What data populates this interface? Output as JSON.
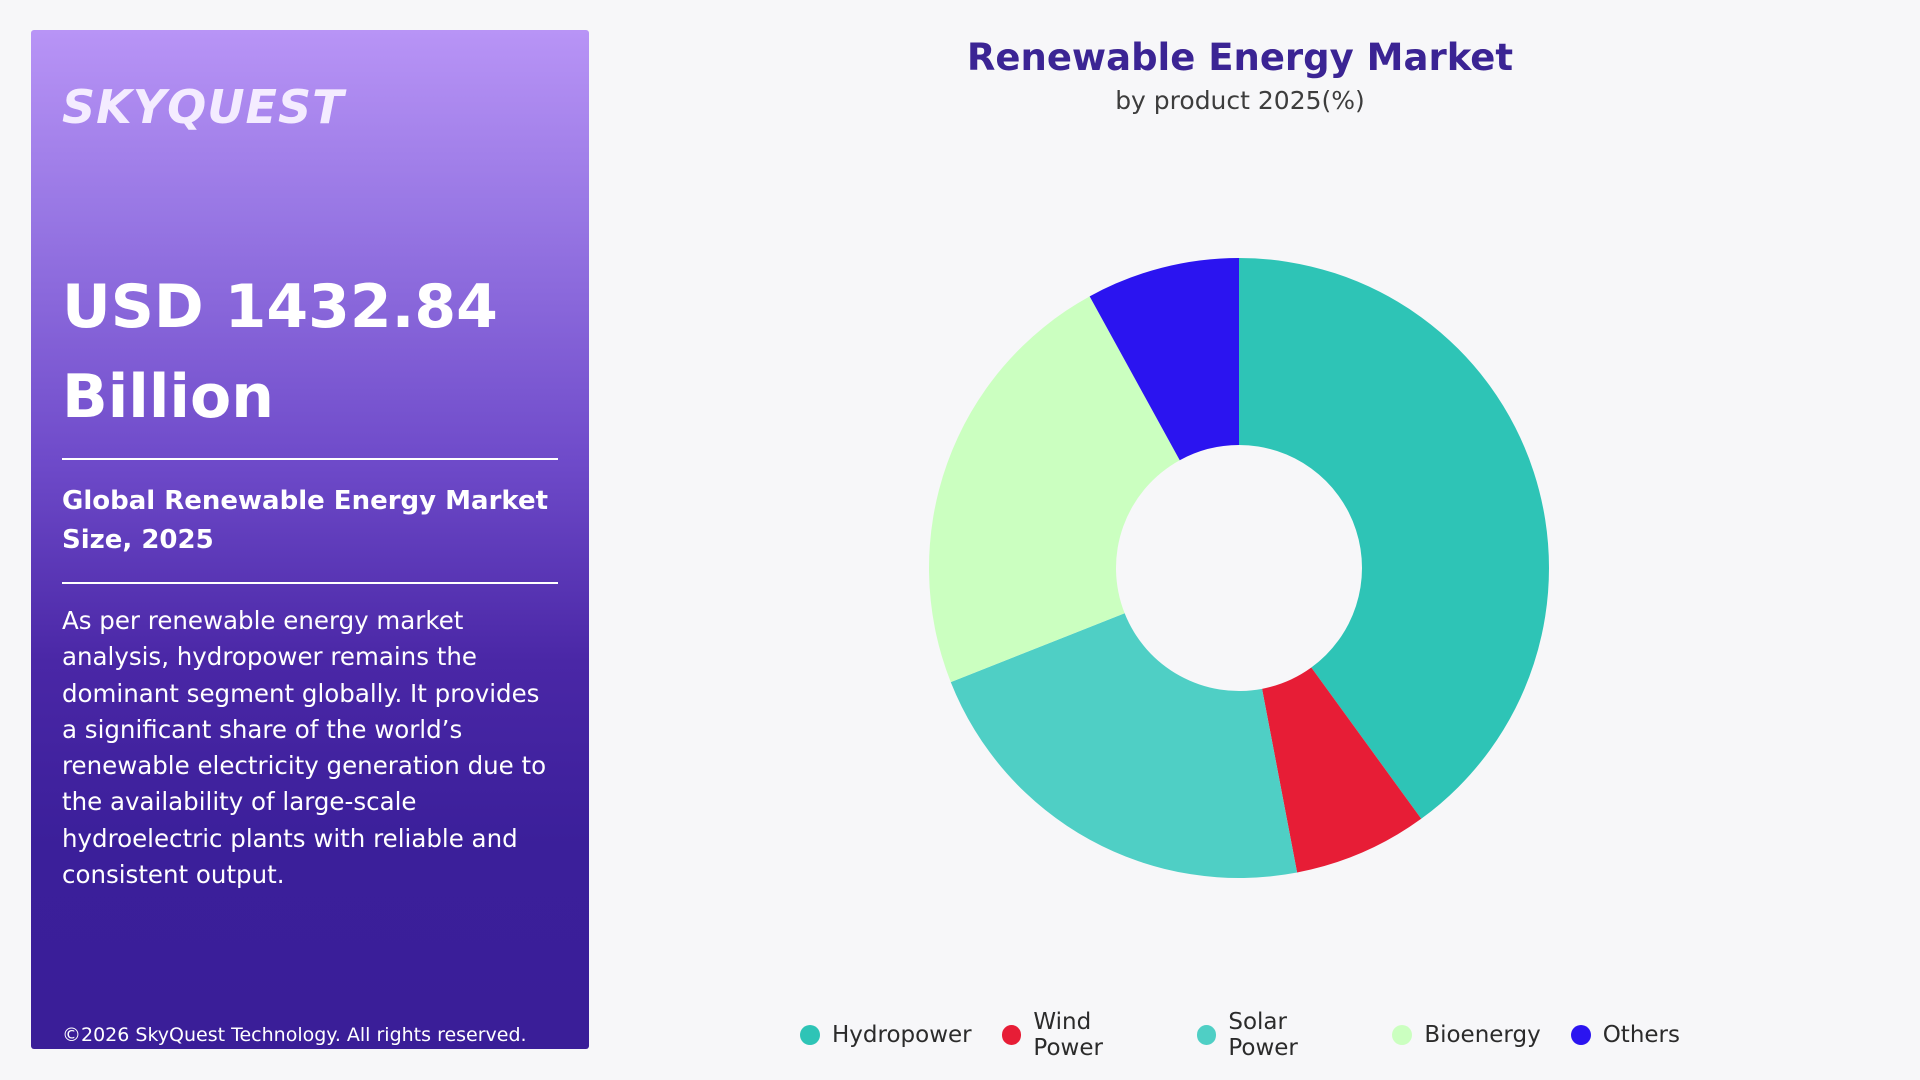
{
  "panel": {
    "logo": "SKYQUEST",
    "market_size_line1": "USD 1432.84",
    "market_size_line2": "Billion",
    "market_label": "Global Renewable Energy Market Size, 2025",
    "description": "As per renewable energy market analysis, hydropower remains the dominant segment globally. It provides a significant share of the world’s renewable electricity generation due to the availability of large-scale hydroelectric plants with reliable and consistent output.",
    "copyright": "©2026 SkyQuest Technology. All rights reserved."
  },
  "chart_data": {
    "type": "pie",
    "title": "Renewable Energy Market",
    "subtitle": "by product 2025(%)",
    "donut": true,
    "categories": [
      "Hydropower",
      "Wind Power",
      "Solar Power",
      "Bioenergy",
      "Others"
    ],
    "values": [
      40.0,
      7.0,
      22.0,
      23.0,
      8.0
    ],
    "colors": [
      "#2ec4b6",
      "#e71d36",
      "#4fcfc5",
      "#cbffc0",
      "#2b14f0"
    ],
    "legend_position": "bottom"
  }
}
